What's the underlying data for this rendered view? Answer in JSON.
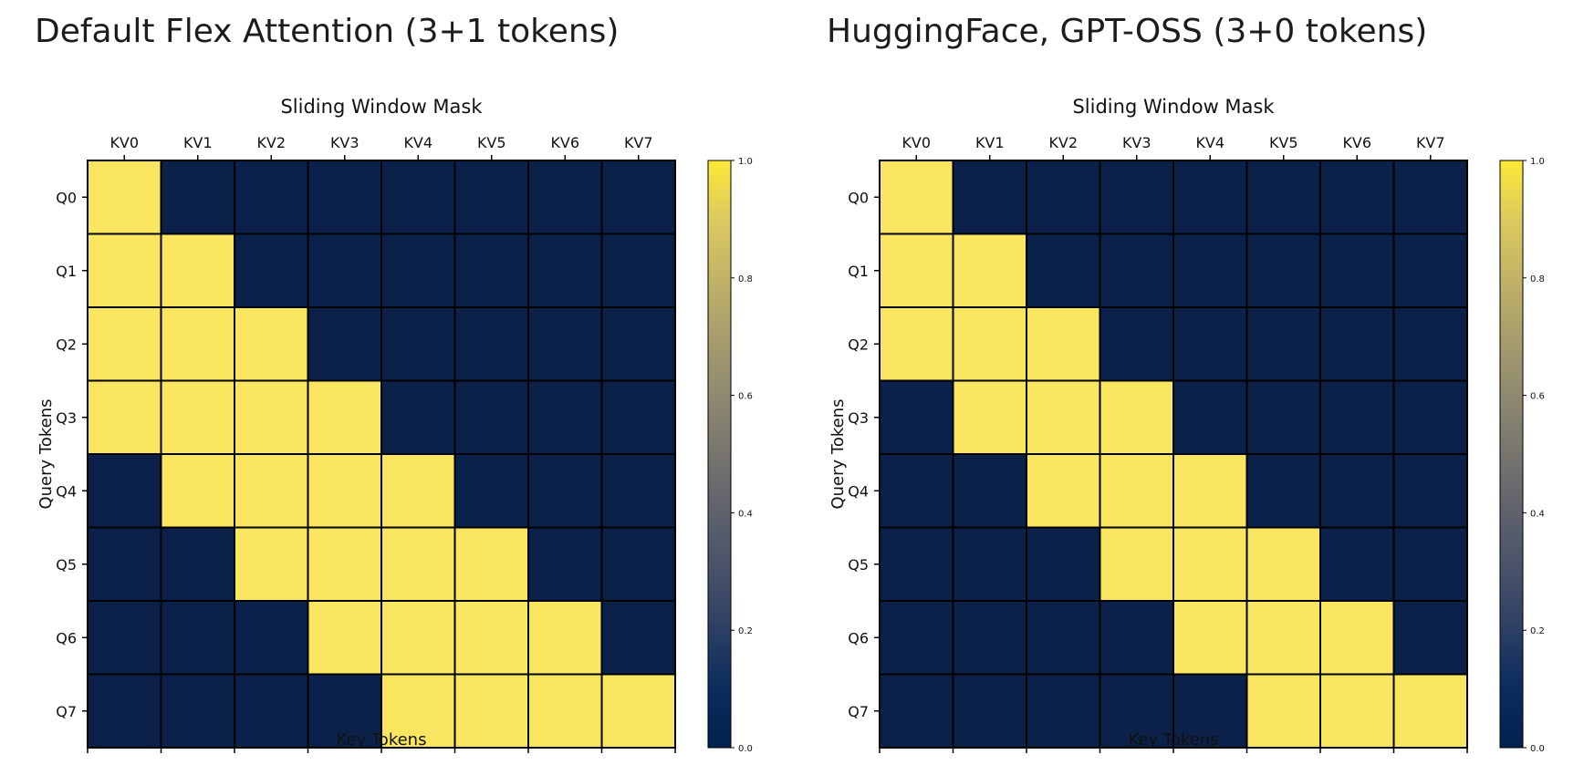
{
  "panels": [
    {
      "heading": "Default Flex Attention (3+1 tokens)",
      "chart_data": {
        "type": "heatmap",
        "title": "Sliding Window Mask",
        "xlabel": "Key Tokens",
        "ylabel": "Query Tokens",
        "x_categories": [
          "KV0",
          "KV1",
          "KV2",
          "KV3",
          "KV4",
          "KV5",
          "KV6",
          "KV7"
        ],
        "y_categories": [
          "Q0",
          "Q1",
          "Q2",
          "Q3",
          "Q4",
          "Q5",
          "Q6",
          "Q7"
        ],
        "values": [
          [
            1,
            0,
            0,
            0,
            0,
            0,
            0,
            0
          ],
          [
            1,
            1,
            0,
            0,
            0,
            0,
            0,
            0
          ],
          [
            1,
            1,
            1,
            0,
            0,
            0,
            0,
            0
          ],
          [
            1,
            1,
            1,
            1,
            0,
            0,
            0,
            0
          ],
          [
            0,
            1,
            1,
            1,
            1,
            0,
            0,
            0
          ],
          [
            0,
            0,
            1,
            1,
            1,
            1,
            0,
            0
          ],
          [
            0,
            0,
            0,
            1,
            1,
            1,
            1,
            0
          ],
          [
            0,
            0,
            0,
            0,
            1,
            1,
            1,
            1
          ]
        ],
        "colorbar": {
          "range": [
            0.0,
            1.0
          ],
          "ticks": [
            "0.0",
            "0.2",
            "0.4",
            "0.6",
            "0.8",
            "1.0"
          ]
        },
        "colormap": "cividis",
        "grid": true
      }
    },
    {
      "heading": "HuggingFace, GPT-OSS (3+0 tokens)",
      "chart_data": {
        "type": "heatmap",
        "title": "Sliding Window Mask",
        "xlabel": "Key Tokens",
        "ylabel": "Query Tokens",
        "x_categories": [
          "KV0",
          "KV1",
          "KV2",
          "KV3",
          "KV4",
          "KV5",
          "KV6",
          "KV7"
        ],
        "y_categories": [
          "Q0",
          "Q1",
          "Q2",
          "Q3",
          "Q4",
          "Q5",
          "Q6",
          "Q7"
        ],
        "values": [
          [
            1,
            0,
            0,
            0,
            0,
            0,
            0,
            0
          ],
          [
            1,
            1,
            0,
            0,
            0,
            0,
            0,
            0
          ],
          [
            1,
            1,
            1,
            0,
            0,
            0,
            0,
            0
          ],
          [
            0,
            1,
            1,
            1,
            0,
            0,
            0,
            0
          ],
          [
            0,
            0,
            1,
            1,
            1,
            0,
            0,
            0
          ],
          [
            0,
            0,
            0,
            1,
            1,
            1,
            0,
            0
          ],
          [
            0,
            0,
            0,
            0,
            1,
            1,
            1,
            0
          ],
          [
            0,
            0,
            0,
            0,
            0,
            1,
            1,
            1
          ]
        ],
        "colorbar": {
          "range": [
            0.0,
            1.0
          ],
          "ticks": [
            "0.0",
            "0.2",
            "0.4",
            "0.6",
            "0.8",
            "1.0"
          ]
        },
        "colormap": "cividis",
        "grid": true
      }
    }
  ],
  "colors": {
    "low": "#0b2149",
    "high": "#f9e55f",
    "gridline": "#000000"
  }
}
